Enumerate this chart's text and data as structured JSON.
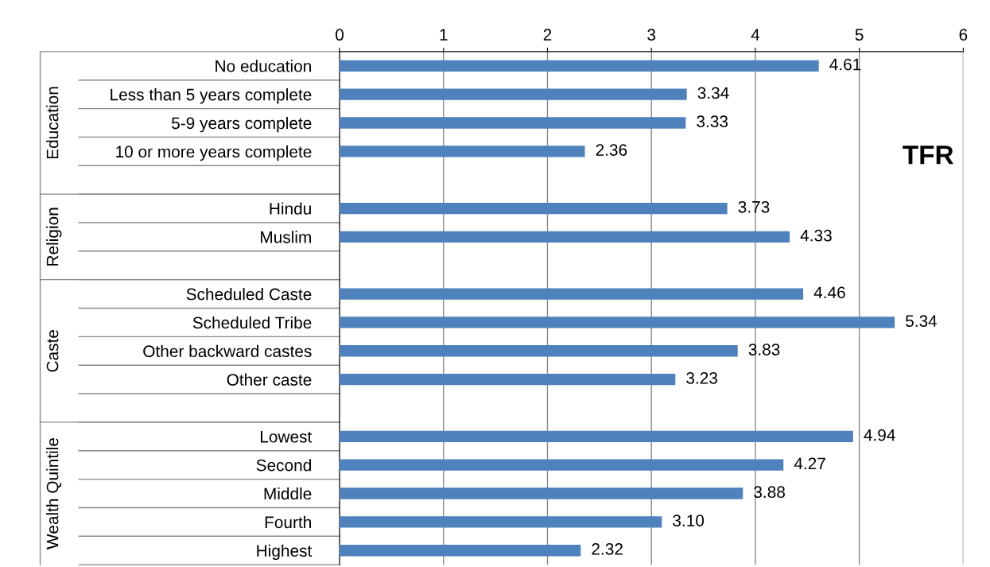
{
  "chart_data": {
    "type": "bar",
    "orientation": "horizontal",
    "categories": [
      "No education",
      "Less than 5 years complete",
      "5-9 years complete",
      "10 or more years complete",
      null,
      "Hindu",
      "Muslim",
      null,
      "Scheduled Caste",
      "Scheduled Tribe",
      "Other backward castes",
      "Other caste",
      null,
      "Lowest",
      "Second",
      "Middle",
      "Fourth",
      "Highest"
    ],
    "series": [
      {
        "color": "#4f81bd",
        "values": [
          4.61,
          3.34,
          3.33,
          2.36,
          null,
          3.73,
          4.33,
          null,
          4.46,
          5.34,
          3.83,
          3.23,
          null,
          4.94,
          4.27,
          3.88,
          3.1,
          2.32
        ],
        "value_labels": [
          "4.61",
          "3.34",
          "3.33",
          "2.36",
          null,
          "3.73",
          "4.33",
          null,
          "4.46",
          "5.34",
          "3.83",
          "3.23",
          null,
          "4.94",
          "4.27",
          "3.88",
          "3.10",
          "2.32"
        ]
      }
    ],
    "annotations": [
      "Education",
      "Religion",
      "Caste",
      "Wealth Quintile",
      "TFR"
    ],
    "xlim": [
      0,
      6
    ],
    "xticks": [
      0,
      1,
      2,
      3,
      4,
      5,
      6
    ],
    "grid": "x"
  }
}
